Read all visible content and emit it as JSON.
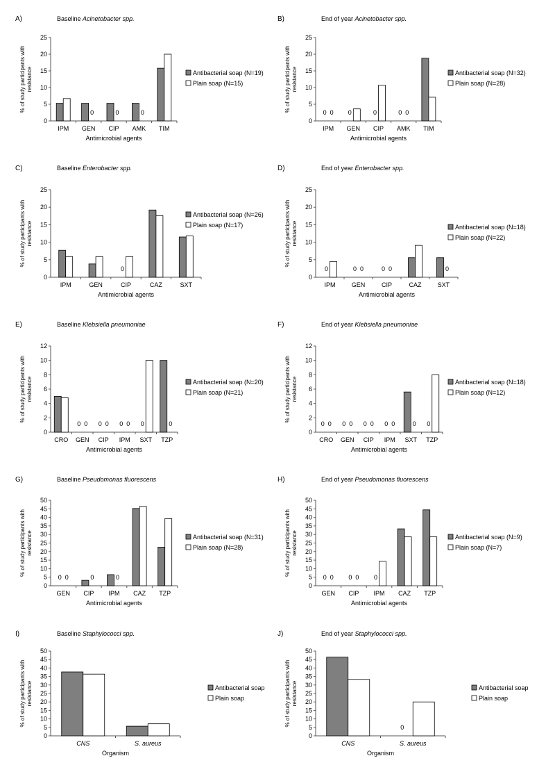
{
  "figure": {
    "ylabel_line1": "% of study participants with",
    "ylabel_line2": "resistance"
  },
  "colors": {
    "antibacterial": "#7f7f7f",
    "plain": "#ffffff",
    "stroke": "#000000",
    "axis": "#555555"
  },
  "chart_data": [
    {
      "label": "A)",
      "title_prefix": "Baseline ",
      "title_italic": "Acinetobacter spp.",
      "type": "bar",
      "categories": [
        "IPM",
        "GEN",
        "CIP",
        "AMK",
        "TIM"
      ],
      "series": [
        {
          "name": "Antibacterial soap (N=19)",
          "values": [
            5.3,
            5.3,
            5.3,
            5.3,
            15.8
          ]
        },
        {
          "name": "Plain soap (N=15)",
          "values": [
            6.7,
            0,
            0,
            0,
            20
          ]
        }
      ],
      "xlabel": "Antimicrobial agents",
      "ylim": [
        0,
        25
      ],
      "yticks": [
        0,
        5,
        10,
        15,
        20,
        25
      ],
      "legend": "right"
    },
    {
      "label": "B)",
      "title_prefix": "End of year ",
      "title_italic": "Acinetobacter spp.",
      "type": "bar",
      "categories": [
        "IPM",
        "GEN",
        "CIP",
        "AMK",
        "TIM"
      ],
      "series": [
        {
          "name": "Antibacterial soap (N=32)",
          "values": [
            0,
            0,
            0,
            0,
            18.8
          ]
        },
        {
          "name": "Plain soap (N=28)",
          "values": [
            0,
            3.6,
            10.7,
            0,
            7.1
          ]
        }
      ],
      "xlabel": "Antimicrobial agents",
      "ylim": [
        0,
        25
      ],
      "yticks": [
        0,
        5,
        10,
        15,
        20,
        25
      ],
      "legend": "right"
    },
    {
      "label": "C)",
      "title_prefix": "Baseline ",
      "title_italic": "Enterobacter spp.",
      "type": "bar",
      "categories": [
        "IPM",
        "GEN",
        "CIP",
        "CAZ",
        "SXT"
      ],
      "series": [
        {
          "name": "Antibacterial soap (N=26)",
          "values": [
            7.7,
            3.8,
            0,
            19.2,
            11.5
          ]
        },
        {
          "name": "Plain soap (N=17)",
          "values": [
            5.9,
            5.9,
            5.9,
            17.6,
            11.8
          ]
        }
      ],
      "xlabel": "Antimicrobial agents",
      "ylim": [
        0,
        25
      ],
      "yticks": [
        0,
        5,
        10,
        15,
        20,
        25
      ],
      "legend": "right"
    },
    {
      "label": "D)",
      "title_prefix": "End of year ",
      "title_italic": "Enterobacter spp.",
      "type": "bar",
      "categories": [
        "IPM",
        "GEN",
        "CIP",
        "CAZ",
        "SXT"
      ],
      "series": [
        {
          "name": "Antibacterial soap (N=18)",
          "values": [
            0,
            0,
            0,
            5.6,
            5.6
          ]
        },
        {
          "name": "Plain soap (N=22)",
          "values": [
            4.5,
            0,
            0,
            9.1,
            0
          ]
        }
      ],
      "xlabel": "Antimicrobial agents",
      "ylim": [
        0,
        25
      ],
      "yticks": [
        0,
        5,
        10,
        15,
        20,
        25
      ],
      "legend": "right"
    },
    {
      "label": "E)",
      "title_prefix": "Baseline ",
      "title_italic": "Klebsiella pneumoniae",
      "type": "bar",
      "categories": [
        "CRO",
        "GEN",
        "CIP",
        "IPM",
        "SXT",
        "TZP"
      ],
      "series": [
        {
          "name": "Antibacterial soap (N=20)",
          "values": [
            5,
            0,
            0,
            0,
            0,
            10
          ]
        },
        {
          "name": "Plain soap (N=21)",
          "values": [
            4.8,
            0,
            0,
            0,
            10,
            0
          ]
        }
      ],
      "xlabel": "Antimicrobial agents",
      "ylim": [
        0,
        12
      ],
      "yticks": [
        0,
        2,
        4,
        6,
        8,
        10,
        12
      ],
      "legend": "right"
    },
    {
      "label": "F)",
      "title_prefix": "End of year ",
      "title_italic": "Klebsiella pneumoniae",
      "type": "bar",
      "categories": [
        "CRO",
        "GEN",
        "CIP",
        "IPM",
        "SXT",
        "TZP"
      ],
      "series": [
        {
          "name": "Antibacterial soap (N=18)",
          "values": [
            0,
            0,
            0,
            0,
            5.6,
            0
          ]
        },
        {
          "name": "Plain soap (N=12)",
          "values": [
            0,
            0,
            0,
            0,
            0,
            8
          ]
        }
      ],
      "xlabel": "Antimicrobial agents",
      "ylim": [
        0,
        12
      ],
      "yticks": [
        0,
        2,
        4,
        6,
        8,
        10,
        12
      ],
      "legend": "right"
    },
    {
      "label": "G)",
      "title_prefix": "Baseline ",
      "title_italic": "Pseudomonas fluorescens",
      "type": "bar",
      "categories": [
        "GEN",
        "CIP",
        "IPM",
        "CAZ",
        "TZP"
      ],
      "series": [
        {
          "name": "Antibacterial soap (N=31)",
          "values": [
            0,
            3.2,
            6.5,
            45.2,
            22.6
          ]
        },
        {
          "name": "Plain soap (N=28)",
          "values": [
            0,
            0,
            0,
            46.4,
            39.3
          ]
        }
      ],
      "xlabel": "Antimicrobial agents",
      "ylim": [
        0,
        50
      ],
      "yticks": [
        0,
        5,
        10,
        15,
        20,
        25,
        30,
        35,
        40,
        45,
        50
      ],
      "legend": "right"
    },
    {
      "label": "H)",
      "title_prefix": "End of year ",
      "title_italic": "Pseudomonas fluorescens",
      "type": "bar",
      "categories": [
        "GEN",
        "CIP",
        "IPM",
        "CAZ",
        "TZP"
      ],
      "series": [
        {
          "name": "Antibacterial soap (N=9)",
          "values": [
            0,
            0,
            0,
            33.3,
            44.4
          ]
        },
        {
          "name": "Plain soap (N=7)",
          "values": [
            0,
            0,
            14.3,
            28.6,
            28.6
          ]
        }
      ],
      "xlabel": "Antimicrobial agents",
      "ylim": [
        0,
        50
      ],
      "yticks": [
        0,
        5,
        10,
        15,
        20,
        25,
        30,
        35,
        40,
        45,
        50
      ],
      "legend": "right"
    },
    {
      "label": "I)",
      "title_prefix": "Baseline ",
      "title_italic": "Staphylococci spp.",
      "type": "bar",
      "categories": [
        "CNS",
        "S. aureus"
      ],
      "series": [
        {
          "name": "Antibacterial soap",
          "values": [
            37.7,
            5.7
          ]
        },
        {
          "name": "Plain soap",
          "values": [
            36.4,
            7.1
          ]
        }
      ],
      "xlabel": "Organism",
      "ylim": [
        0,
        50
      ],
      "yticks": [
        0,
        5,
        10,
        15,
        20,
        25,
        30,
        35,
        40,
        45,
        50
      ],
      "legend": "right"
    },
    {
      "label": "J)",
      "title_prefix": "End of year ",
      "title_italic": "Staphylococci spp.",
      "type": "bar",
      "categories": [
        "CNS",
        "S. aureus"
      ],
      "series": [
        {
          "name": "Antibacterial soap",
          "values": [
            46.4,
            0
          ]
        },
        {
          "name": "Plain soap",
          "values": [
            33.3,
            20
          ]
        }
      ],
      "xlabel": "Organism",
      "ylim": [
        0,
        50
      ],
      "yticks": [
        0,
        5,
        10,
        15,
        20,
        25,
        30,
        35,
        40,
        45,
        50
      ],
      "legend": "right"
    }
  ]
}
